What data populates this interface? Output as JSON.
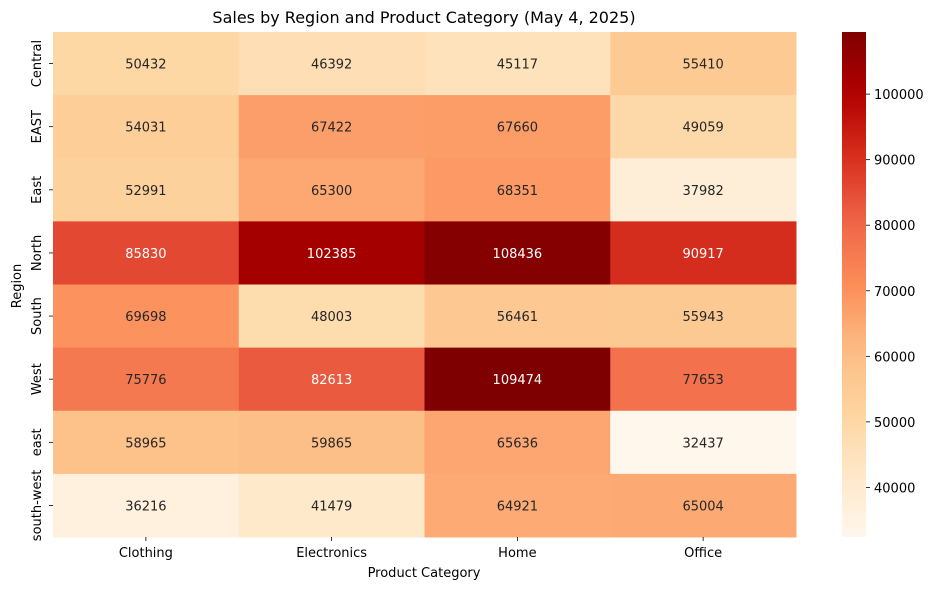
{
  "chart_data": {
    "type": "heatmap",
    "title": "Sales by Region and Product Category (May 4, 2025)",
    "xlabel": "Product Category",
    "ylabel": "Region",
    "columns": [
      "Clothing",
      "Electronics",
      "Home",
      "Office"
    ],
    "rows": [
      "Central",
      "EAST",
      "East",
      "North",
      "South",
      "West",
      "east",
      "south-west"
    ],
    "values": [
      [
        50432,
        46392,
        45117,
        55410
      ],
      [
        54031,
        67422,
        67660,
        49059
      ],
      [
        52991,
        65300,
        68351,
        37982
      ],
      [
        85830,
        102385,
        108436,
        90917
      ],
      [
        69698,
        48003,
        56461,
        55943
      ],
      [
        75776,
        82613,
        109474,
        77653
      ],
      [
        58965,
        59865,
        65636,
        32437
      ],
      [
        36216,
        41479,
        64921,
        65004
      ]
    ],
    "colormap": "OrRd",
    "colorbar": {
      "min": 32437,
      "max": 109474,
      "ticks": [
        40000,
        50000,
        60000,
        70000,
        80000,
        90000,
        100000
      ]
    },
    "annotations": true,
    "grid": false
  }
}
